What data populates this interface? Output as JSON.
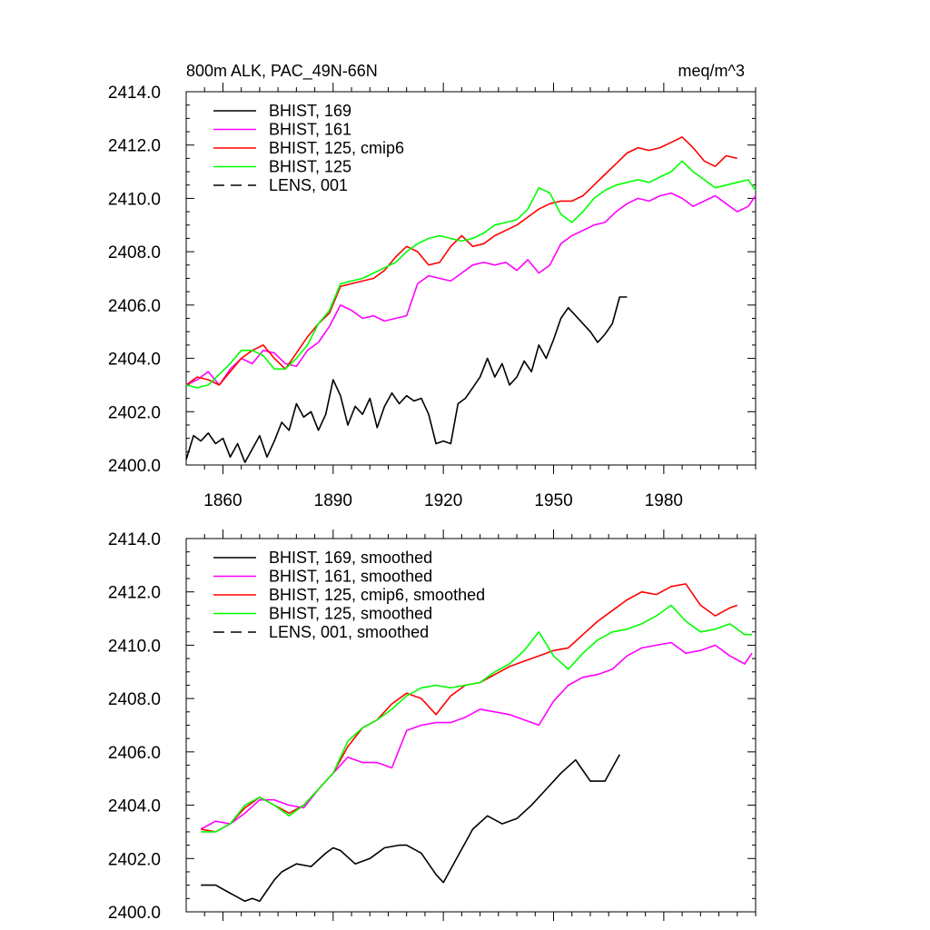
{
  "chart_data": [
    {
      "type": "line",
      "title": "800m ALK, PAC_49N-66N",
      "units": "meq/m^3",
      "xlim": [
        1850,
        2005
      ],
      "ylim": [
        2400.0,
        2414.0
      ],
      "yticks": [
        "2400.0",
        "2402.0",
        "2404.0",
        "2406.0",
        "2408.0",
        "2410.0",
        "2412.0",
        "2414.0"
      ],
      "xticks": [
        "1860",
        "1890",
        "1920",
        "1950",
        "1980"
      ],
      "legend_position": "top-left",
      "series": [
        {
          "name": "BHIST, 169",
          "color": "#000000",
          "dash": "solid",
          "x": [
            1850,
            1852,
            1854,
            1856,
            1858,
            1860,
            1862,
            1864,
            1866,
            1868,
            1870,
            1872,
            1874,
            1876,
            1878,
            1880,
            1882,
            1884,
            1886,
            1888,
            1890,
            1892,
            1894,
            1896,
            1898,
            1900,
            1902,
            1904,
            1906,
            1908,
            1910,
            1912,
            1914,
            1916,
            1918,
            1920,
            1922,
            1924,
            1926,
            1928,
            1930,
            1932,
            1934,
            1936,
            1938,
            1940,
            1942,
            1944,
            1946,
            1948,
            1950,
            1952,
            1954,
            1956,
            1958,
            1960,
            1962,
            1964,
            1966,
            1968,
            1970
          ],
          "y": [
            2400.2,
            2401.1,
            2400.9,
            2401.2,
            2400.8,
            2401.0,
            2400.3,
            2400.8,
            2400.1,
            2400.6,
            2401.1,
            2400.3,
            2400.9,
            2401.6,
            2401.3,
            2402.3,
            2401.8,
            2402.0,
            2401.3,
            2401.9,
            2403.2,
            2402.6,
            2401.5,
            2402.2,
            2401.9,
            2402.5,
            2401.4,
            2402.2,
            2402.7,
            2402.3,
            2402.6,
            2402.4,
            2402.5,
            2401.9,
            2400.8,
            2400.9,
            2400.8,
            2402.3,
            2402.5,
            2402.9,
            2403.3,
            2404.0,
            2403.3,
            2403.8,
            2403.0,
            2403.3,
            2403.9,
            2403.5,
            2404.5,
            2404.0,
            2404.7,
            2405.5,
            2405.9,
            2405.6,
            2405.3,
            2405.0,
            2404.6,
            2404.9,
            2405.3,
            2406.3,
            2406.3
          ]
        },
        {
          "name": "BHIST, 161",
          "color": "#ff00ff",
          "dash": "solid",
          "x": [
            1850,
            1853,
            1856,
            1859,
            1862,
            1865,
            1868,
            1871,
            1874,
            1877,
            1880,
            1883,
            1886,
            1889,
            1892,
            1895,
            1898,
            1901,
            1904,
            1907,
            1910,
            1913,
            1916,
            1919,
            1922,
            1925,
            1928,
            1931,
            1934,
            1937,
            1940,
            1943,
            1946,
            1949,
            1952,
            1955,
            1958,
            1961,
            1964,
            1967,
            1970,
            1973,
            1976,
            1979,
            1982,
            1985,
            1988,
            1991,
            1994,
            1997,
            2000,
            2003,
            2005
          ],
          "y": [
            2403.0,
            2403.2,
            2403.5,
            2403.0,
            2403.6,
            2404.0,
            2403.8,
            2404.3,
            2404.2,
            2403.8,
            2403.7,
            2404.3,
            2404.6,
            2405.2,
            2406.0,
            2405.8,
            2405.5,
            2405.6,
            2405.4,
            2405.5,
            2405.6,
            2406.8,
            2407.1,
            2407.0,
            2406.9,
            2407.2,
            2407.5,
            2407.6,
            2407.5,
            2407.6,
            2407.3,
            2407.7,
            2407.2,
            2407.5,
            2408.3,
            2408.6,
            2408.8,
            2409.0,
            2409.1,
            2409.5,
            2409.8,
            2410.0,
            2409.9,
            2410.1,
            2410.2,
            2410.0,
            2409.7,
            2409.9,
            2410.1,
            2409.8,
            2409.5,
            2409.7,
            2410.1
          ]
        },
        {
          "name": "BHIST, 125, cmip6",
          "color": "#ff0000",
          "dash": "solid",
          "x": [
            1850,
            1853,
            1856,
            1859,
            1862,
            1865,
            1868,
            1871,
            1874,
            1877,
            1880,
            1883,
            1886,
            1889,
            1892,
            1895,
            1898,
            1901,
            1904,
            1907,
            1910,
            1913,
            1916,
            1919,
            1922,
            1925,
            1928,
            1931,
            1934,
            1937,
            1940,
            1943,
            1946,
            1949,
            1952,
            1955,
            1958,
            1961,
            1964,
            1967,
            1970,
            1973,
            1976,
            1979,
            1982,
            1985,
            1988,
            1991,
            1994,
            1997,
            2000
          ],
          "y": [
            2403.0,
            2403.3,
            2403.2,
            2403.0,
            2403.5,
            2404.0,
            2404.3,
            2404.5,
            2404.0,
            2403.6,
            2404.2,
            2404.8,
            2405.3,
            2405.7,
            2406.7,
            2406.8,
            2406.9,
            2407.0,
            2407.3,
            2407.8,
            2408.2,
            2408.0,
            2407.5,
            2407.6,
            2408.2,
            2408.6,
            2408.2,
            2408.3,
            2408.6,
            2408.8,
            2409.0,
            2409.3,
            2409.6,
            2409.8,
            2409.9,
            2409.9,
            2410.1,
            2410.5,
            2410.9,
            2411.3,
            2411.7,
            2411.9,
            2411.8,
            2411.9,
            2412.1,
            2412.3,
            2411.9,
            2411.4,
            2411.2,
            2411.6,
            2411.5
          ]
        },
        {
          "name": "BHIST, 125",
          "color": "#00ff00",
          "dash": "solid",
          "x": [
            1850,
            1853,
            1856,
            1859,
            1862,
            1865,
            1868,
            1871,
            1874,
            1877,
            1880,
            1883,
            1886,
            1889,
            1892,
            1895,
            1898,
            1901,
            1904,
            1907,
            1910,
            1913,
            1916,
            1919,
            1922,
            1925,
            1928,
            1931,
            1934,
            1937,
            1940,
            1943,
            1946,
            1949,
            1952,
            1955,
            1958,
            1961,
            1964,
            1967,
            1970,
            1973,
            1976,
            1979,
            1982,
            1985,
            1988,
            1991,
            1994,
            1997,
            2000,
            2003,
            2005
          ],
          "y": [
            2403.0,
            2402.9,
            2403.0,
            2403.4,
            2403.8,
            2404.3,
            2404.3,
            2404.1,
            2403.6,
            2403.6,
            2404.0,
            2404.5,
            2405.3,
            2405.8,
            2406.8,
            2406.9,
            2407.0,
            2407.2,
            2407.4,
            2407.6,
            2408.0,
            2408.3,
            2408.5,
            2408.6,
            2408.5,
            2408.4,
            2408.5,
            2408.7,
            2409.0,
            2409.1,
            2409.2,
            2409.6,
            2410.4,
            2410.2,
            2409.4,
            2409.1,
            2409.5,
            2410.0,
            2410.3,
            2410.5,
            2410.6,
            2410.7,
            2410.6,
            2410.8,
            2411.0,
            2411.4,
            2411.0,
            2410.7,
            2410.4,
            2410.5,
            2410.6,
            2410.7,
            2410.3
          ]
        },
        {
          "name": "LENS, 001",
          "color": "#000000",
          "dash": "dashed",
          "x": [],
          "y": []
        }
      ]
    },
    {
      "type": "line",
      "xlim": [
        1850,
        2005
      ],
      "ylim": [
        2400.0,
        2414.0
      ],
      "yticks": [
        "2400.0",
        "2402.0",
        "2404.0",
        "2406.0",
        "2408.0",
        "2410.0",
        "2412.0",
        "2414.0"
      ],
      "legend_position": "top-left",
      "series": [
        {
          "name": "BHIST, 169, smoothed",
          "color": "#000000",
          "dash": "solid",
          "x": [
            1854,
            1858,
            1862,
            1866,
            1868,
            1870,
            1872,
            1874,
            1876,
            1880,
            1884,
            1888,
            1890,
            1892,
            1896,
            1900,
            1904,
            1908,
            1910,
            1914,
            1918,
            1920,
            1924,
            1928,
            1932,
            1936,
            1940,
            1944,
            1948,
            1952,
            1956,
            1960,
            1964,
            1968
          ],
          "y": [
            2401.0,
            2401.0,
            2400.7,
            2400.4,
            2400.5,
            2400.4,
            2400.8,
            2401.2,
            2401.5,
            2401.8,
            2401.7,
            2402.2,
            2402.4,
            2402.3,
            2401.8,
            2402.0,
            2402.4,
            2402.5,
            2402.5,
            2402.2,
            2401.4,
            2401.1,
            2402.1,
            2403.1,
            2403.6,
            2403.3,
            2403.5,
            2404.0,
            2404.6,
            2405.2,
            2405.7,
            2404.9,
            2404.9,
            2405.9
          ]
        },
        {
          "name": "BHIST, 161, smoothed",
          "color": "#ff00ff",
          "dash": "solid",
          "x": [
            1854,
            1858,
            1862,
            1866,
            1870,
            1874,
            1878,
            1882,
            1886,
            1890,
            1894,
            1898,
            1902,
            1906,
            1910,
            1914,
            1918,
            1922,
            1926,
            1930,
            1934,
            1938,
            1942,
            1946,
            1950,
            1954,
            1958,
            1962,
            1966,
            1970,
            1974,
            1978,
            1982,
            1986,
            1990,
            1994,
            1998,
            2002,
            2004
          ],
          "y": [
            2403.1,
            2403.4,
            2403.3,
            2403.7,
            2404.2,
            2404.2,
            2404.0,
            2403.9,
            2404.6,
            2405.2,
            2405.8,
            2405.6,
            2405.6,
            2405.4,
            2406.8,
            2407.0,
            2407.1,
            2407.1,
            2407.3,
            2407.6,
            2407.5,
            2407.4,
            2407.2,
            2407.0,
            2407.9,
            2408.5,
            2408.8,
            2408.9,
            2409.1,
            2409.6,
            2409.9,
            2410.0,
            2410.1,
            2409.7,
            2409.8,
            2410.0,
            2409.6,
            2409.3,
            2409.7
          ]
        },
        {
          "name": "BHIST, 125, cmip6, smoothed",
          "color": "#ff0000",
          "dash": "solid",
          "x": [
            1854,
            1858,
            1862,
            1866,
            1870,
            1874,
            1878,
            1882,
            1886,
            1890,
            1894,
            1898,
            1902,
            1906,
            1910,
            1914,
            1918,
            1922,
            1926,
            1930,
            1934,
            1938,
            1942,
            1946,
            1950,
            1954,
            1958,
            1962,
            1966,
            1970,
            1974,
            1978,
            1982,
            1986,
            1990,
            1994,
            1998,
            2000
          ],
          "y": [
            2403.1,
            2403.0,
            2403.3,
            2403.9,
            2404.3,
            2404.0,
            2403.7,
            2404.0,
            2404.6,
            2405.2,
            2406.2,
            2406.9,
            2407.2,
            2407.8,
            2408.2,
            2408.0,
            2407.4,
            2408.1,
            2408.5,
            2408.6,
            2408.9,
            2409.2,
            2409.4,
            2409.6,
            2409.8,
            2409.9,
            2410.4,
            2410.9,
            2411.3,
            2411.7,
            2412.0,
            2411.9,
            2412.2,
            2412.3,
            2411.5,
            2411.1,
            2411.4,
            2411.5
          ]
        },
        {
          "name": "BHIST, 125, smoothed",
          "color": "#00ff00",
          "dash": "solid",
          "x": [
            1854,
            1858,
            1862,
            1866,
            1870,
            1874,
            1878,
            1882,
            1886,
            1890,
            1894,
            1898,
            1902,
            1906,
            1910,
            1914,
            1918,
            1922,
            1926,
            1930,
            1934,
            1938,
            1942,
            1946,
            1950,
            1954,
            1958,
            1962,
            1966,
            1970,
            1974,
            1978,
            1982,
            1986,
            1990,
            1994,
            1998,
            2002,
            2004
          ],
          "y": [
            2403.0,
            2403.0,
            2403.3,
            2404.0,
            2404.3,
            2404.0,
            2403.6,
            2404.0,
            2404.6,
            2405.2,
            2406.4,
            2406.9,
            2407.2,
            2407.6,
            2408.1,
            2408.4,
            2408.5,
            2408.4,
            2408.5,
            2408.6,
            2409.0,
            2409.3,
            2409.8,
            2410.5,
            2409.6,
            2409.1,
            2409.7,
            2410.2,
            2410.5,
            2410.6,
            2410.8,
            2411.1,
            2411.5,
            2410.9,
            2410.5,
            2410.6,
            2410.8,
            2410.4,
            2410.4
          ]
        },
        {
          "name": "LENS, 001, smoothed",
          "color": "#000000",
          "dash": "dashed",
          "x": [],
          "y": []
        }
      ]
    }
  ]
}
